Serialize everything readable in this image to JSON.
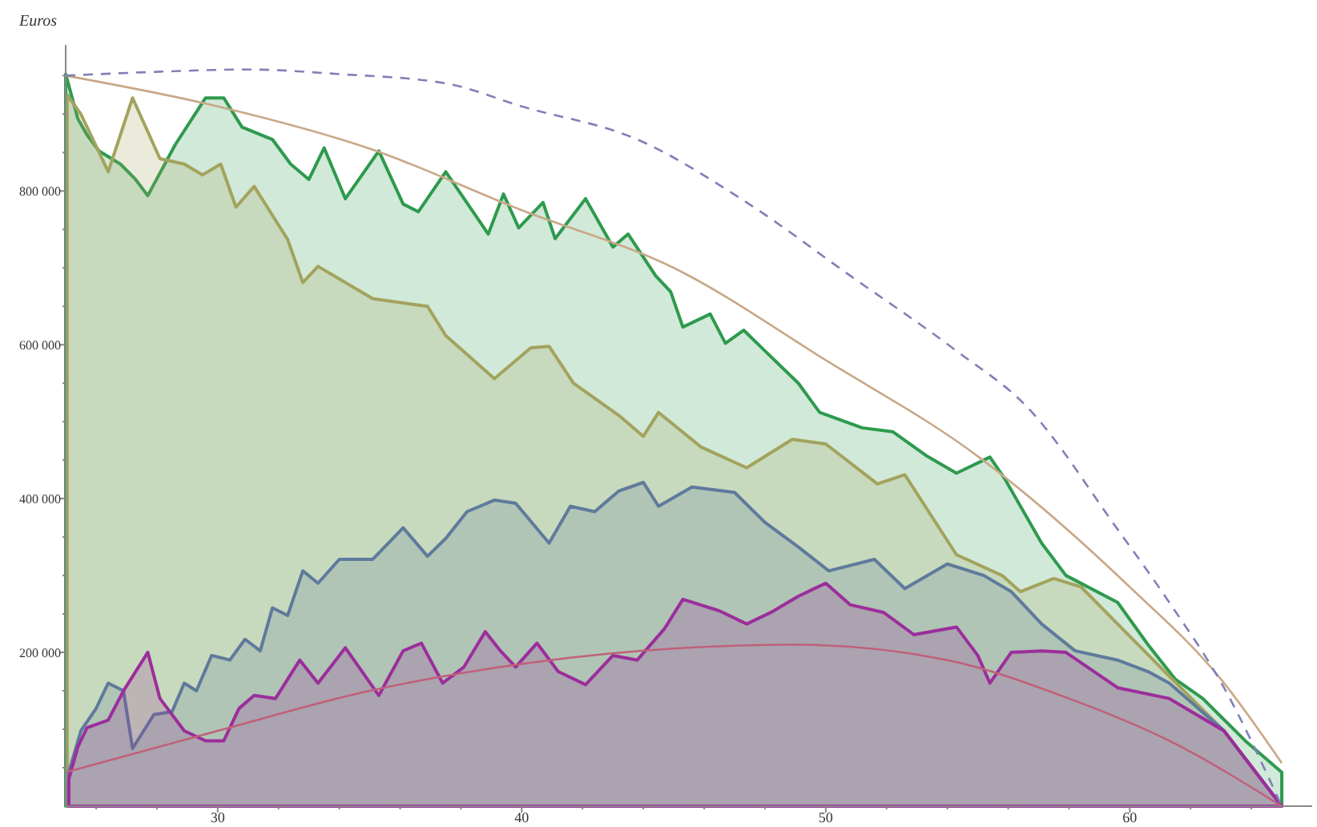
{
  "chart_data": {
    "type": "area",
    "ylabel": "Euros",
    "xlim": [
      25,
      66
    ],
    "ylim": [
      0,
      990000
    ],
    "xticks": [
      {
        "value": 26,
        "label": null
      },
      {
        "value": 28,
        "label": null
      },
      30,
      {
        "value": 32,
        "label": null
      },
      {
        "value": 34,
        "label": null
      },
      {
        "value": 36,
        "label": null
      },
      {
        "value": 38,
        "label": null
      },
      40,
      {
        "value": 42,
        "label": null
      },
      {
        "value": 44,
        "label": null
      },
      {
        "value": 46,
        "label": null
      },
      {
        "value": 48,
        "label": null
      },
      50,
      {
        "value": 52,
        "label": null
      },
      {
        "value": 54,
        "label": null
      },
      {
        "value": 56,
        "label": null
      },
      {
        "value": 58,
        "label": null
      },
      60,
      {
        "value": 62,
        "label": null
      },
      {
        "value": 64,
        "label": null
      }
    ],
    "yticks": [
      {
        "value": 50000,
        "label": null
      },
      {
        "value": 100000,
        "label": null
      },
      {
        "value": 150000,
        "label": null
      },
      {
        "value": 200000,
        "label": "200 000"
      },
      {
        "value": 250000,
        "label": null
      },
      {
        "value": 300000,
        "label": null
      },
      {
        "value": 350000,
        "label": null
      },
      {
        "value": 400000,
        "label": "400 000"
      },
      {
        "value": 450000,
        "label": null
      },
      {
        "value": 500000,
        "label": null
      },
      {
        "value": 550000,
        "label": null
      },
      {
        "value": 600000,
        "label": "600 000"
      },
      {
        "value": 650000,
        "label": null
      },
      {
        "value": 700000,
        "label": null
      },
      {
        "value": 750000,
        "label": null
      },
      {
        "value": 800000,
        "label": "800 000"
      },
      {
        "value": 850000,
        "label": null
      },
      {
        "value": 900000,
        "label": null
      },
      {
        "value": 950000,
        "label": null
      }
    ],
    "grid": false,
    "series": [
      {
        "color": "#2e9a4e",
        "x": [
          25,
          25.4,
          25.7,
          26.1,
          26.8,
          27.3,
          27.7,
          28.6,
          29.6,
          30.2,
          30.8,
          31.8,
          32.4,
          33.0,
          33.5,
          34.2,
          35.3,
          36.1,
          36.6,
          37.5,
          38.9,
          39.4,
          39.9,
          40.7,
          41.1,
          42.1,
          43.0,
          43.5,
          44.4,
          44.9,
          45.3,
          46.2,
          46.7,
          47.3,
          48.0,
          49.1,
          49.8,
          51.2,
          52.2,
          53.3,
          54.3,
          55.4,
          55.9,
          57.1,
          57.9,
          59.6,
          60.6,
          61.5,
          62.4,
          63.8,
          65
        ],
        "values": [
          952000,
          894000,
          873000,
          852000,
          835000,
          815000,
          794000,
          860000,
          921000,
          921000,
          883000,
          867000,
          835000,
          815000,
          856000,
          790000,
          852000,
          783000,
          773000,
          825000,
          744000,
          796000,
          752000,
          785000,
          738000,
          790000,
          727000,
          744000,
          690000,
          669000,
          623000,
          640000,
          602000,
          619000,
          592000,
          550000,
          512000,
          492000,
          487000,
          456000,
          433000,
          454000,
          425000,
          342000,
          300000,
          265000,
          210000,
          165000,
          140000,
          85000,
          44000
        ]
      },
      {
        "color": "#a3a35e",
        "x": [
          25.05,
          25.5,
          26.4,
          27.2,
          28.1,
          28.9,
          29.5,
          30.1,
          30.6,
          31.2,
          32.3,
          32.8,
          33.3,
          35.1,
          36.9,
          37.5,
          39.1,
          40.3,
          40.9,
          41.7,
          43.2,
          44.0,
          44.5,
          45.9,
          47.4,
          48.9,
          50.0,
          51.7,
          52.6,
          54.3,
          55.8,
          56.4,
          57.5,
          58.4,
          59.6,
          61.3,
          63.1,
          65
        ],
        "values": [
          925000,
          900000,
          825000,
          921000,
          842000,
          835000,
          821000,
          835000,
          779000,
          806000,
          737000,
          681000,
          702000,
          660000,
          650000,
          612000,
          556000,
          596000,
          598000,
          550000,
          508000,
          481000,
          512000,
          467000,
          440000,
          477000,
          471000,
          419000,
          431000,
          327000,
          300000,
          279000,
          296000,
          285000,
          237000,
          169000,
          98000,
          0
        ]
      },
      {
        "color": "#5f7a9c",
        "x": [
          25.1,
          25.5,
          26.0,
          26.4,
          26.9,
          27.2,
          27.9,
          28.5,
          28.9,
          29.3,
          29.8,
          30.4,
          30.9,
          31.4,
          31.8,
          32.3,
          32.8,
          33.3,
          34.0,
          35.1,
          36.1,
          36.9,
          37.5,
          38.2,
          39.1,
          39.8,
          40.9,
          41.6,
          42.4,
          43.2,
          44.0,
          44.5,
          45.6,
          47.0,
          48.0,
          49.1,
          50.1,
          51.6,
          52.6,
          54.0,
          55.2,
          56.1,
          57.1,
          58.2,
          59.6,
          60.6,
          61.3,
          63.1,
          65
        ],
        "values": [
          44000,
          98000,
          127000,
          160000,
          150000,
          75000,
          119000,
          123000,
          160000,
          150000,
          196000,
          190000,
          217000,
          202000,
          258000,
          248000,
          306000,
          290000,
          321000,
          321000,
          362000,
          325000,
          348000,
          383000,
          398000,
          394000,
          342000,
          390000,
          383000,
          410000,
          421000,
          390000,
          415000,
          408000,
          369000,
          337000,
          306000,
          321000,
          283000,
          315000,
          300000,
          279000,
          237000,
          202000,
          190000,
          175000,
          160000,
          98000,
          0
        ]
      },
      {
        "color": "#9c2d9c",
        "x": [
          25.1,
          25.4,
          25.7,
          26.4,
          26.9,
          27.7,
          28.1,
          28.9,
          29.6,
          30.2,
          30.7,
          31.2,
          31.9,
          32.7,
          33.3,
          34.2,
          35.3,
          36.1,
          36.7,
          37.4,
          38.1,
          38.8,
          39.3,
          39.8,
          40.5,
          41.2,
          42.1,
          43.0,
          43.8,
          44.7,
          45.3,
          46.5,
          47.4,
          48.2,
          49.1,
          50.0,
          50.8,
          51.9,
          52.9,
          54.3,
          55.0,
          55.4,
          56.1,
          57.1,
          57.9,
          59.6,
          61.3,
          63.1,
          65
        ],
        "values": [
          35000,
          77000,
          102000,
          112000,
          150000,
          200000,
          140000,
          98000,
          85000,
          85000,
          127000,
          144000,
          140000,
          190000,
          160000,
          206000,
          144000,
          202000,
          212000,
          160000,
          181000,
          227000,
          202000,
          181000,
          212000,
          175000,
          158000,
          196000,
          190000,
          231000,
          269000,
          254000,
          237000,
          252000,
          273000,
          290000,
          262000,
          252000,
          223000,
          233000,
          196000,
          160000,
          200000,
          202000,
          200000,
          154000,
          140000,
          98000,
          0
        ]
      },
      {
        "type": "line",
        "color": "#c9a887",
        "x": [
          25,
          30,
          35,
          40,
          45,
          50,
          55,
          60,
          63,
          65
        ],
        "values": [
          950000,
          910000,
          855000,
          775000,
          700000,
          580000,
          455000,
          285000,
          165000,
          56000
        ]
      },
      {
        "type": "line",
        "color": "#c0607a",
        "x": [
          25,
          30,
          35,
          40,
          45,
          49,
          54,
          58,
          61.3,
          65
        ],
        "values": [
          44000,
          98000,
          150000,
          185000,
          205000,
          210000,
          190000,
          140000,
          85000,
          0
        ]
      },
      {
        "type": "line",
        "color": "#8080b8",
        "line_style": "dashed",
        "x": [
          25,
          28,
          31,
          34,
          37.5,
          40,
          43.8,
          47.4,
          50.8,
          54.3,
          56.6,
          59.6,
          61.3,
          63.1,
          65
        ],
        "values": [
          950000,
          955000,
          958000,
          952000,
          940000,
          910000,
          867000,
          785000,
          690000,
          592000,
          520000,
          360000,
          265000,
          154000,
          0
        ]
      }
    ]
  }
}
